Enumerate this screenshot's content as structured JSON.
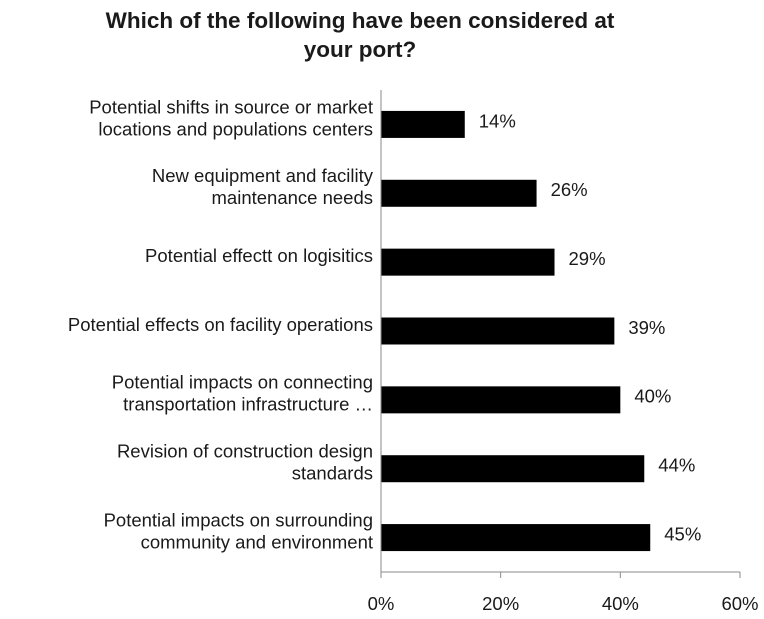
{
  "chart_data": {
    "type": "bar",
    "orientation": "horizontal",
    "title": "Which of the following have been considered at\nyour port?",
    "categories": [
      "Potential shifts in source or market\nlocations and populations centers",
      "New equipment and facility\nmaintenance needs",
      "Potential effectt on logisitics",
      "Potential effects on facility operations",
      "Potential impacts on connecting\ntransportation infrastructure  …",
      "Revision of construction design\nstandards",
      "Potential impacts on surrounding\ncommunity and environment"
    ],
    "values": [
      14,
      26,
      29,
      39,
      40,
      44,
      45
    ],
    "data_labels": [
      "14%",
      "26%",
      "29%",
      "39%",
      "40%",
      "44%",
      "45%"
    ],
    "x_ticks": [
      "0%",
      "20%",
      "40%",
      "60%"
    ],
    "xlim": [
      0,
      60
    ],
    "xlabel": "",
    "ylabel": "",
    "grid": false,
    "legend": "none",
    "bar_color": "#000000"
  }
}
